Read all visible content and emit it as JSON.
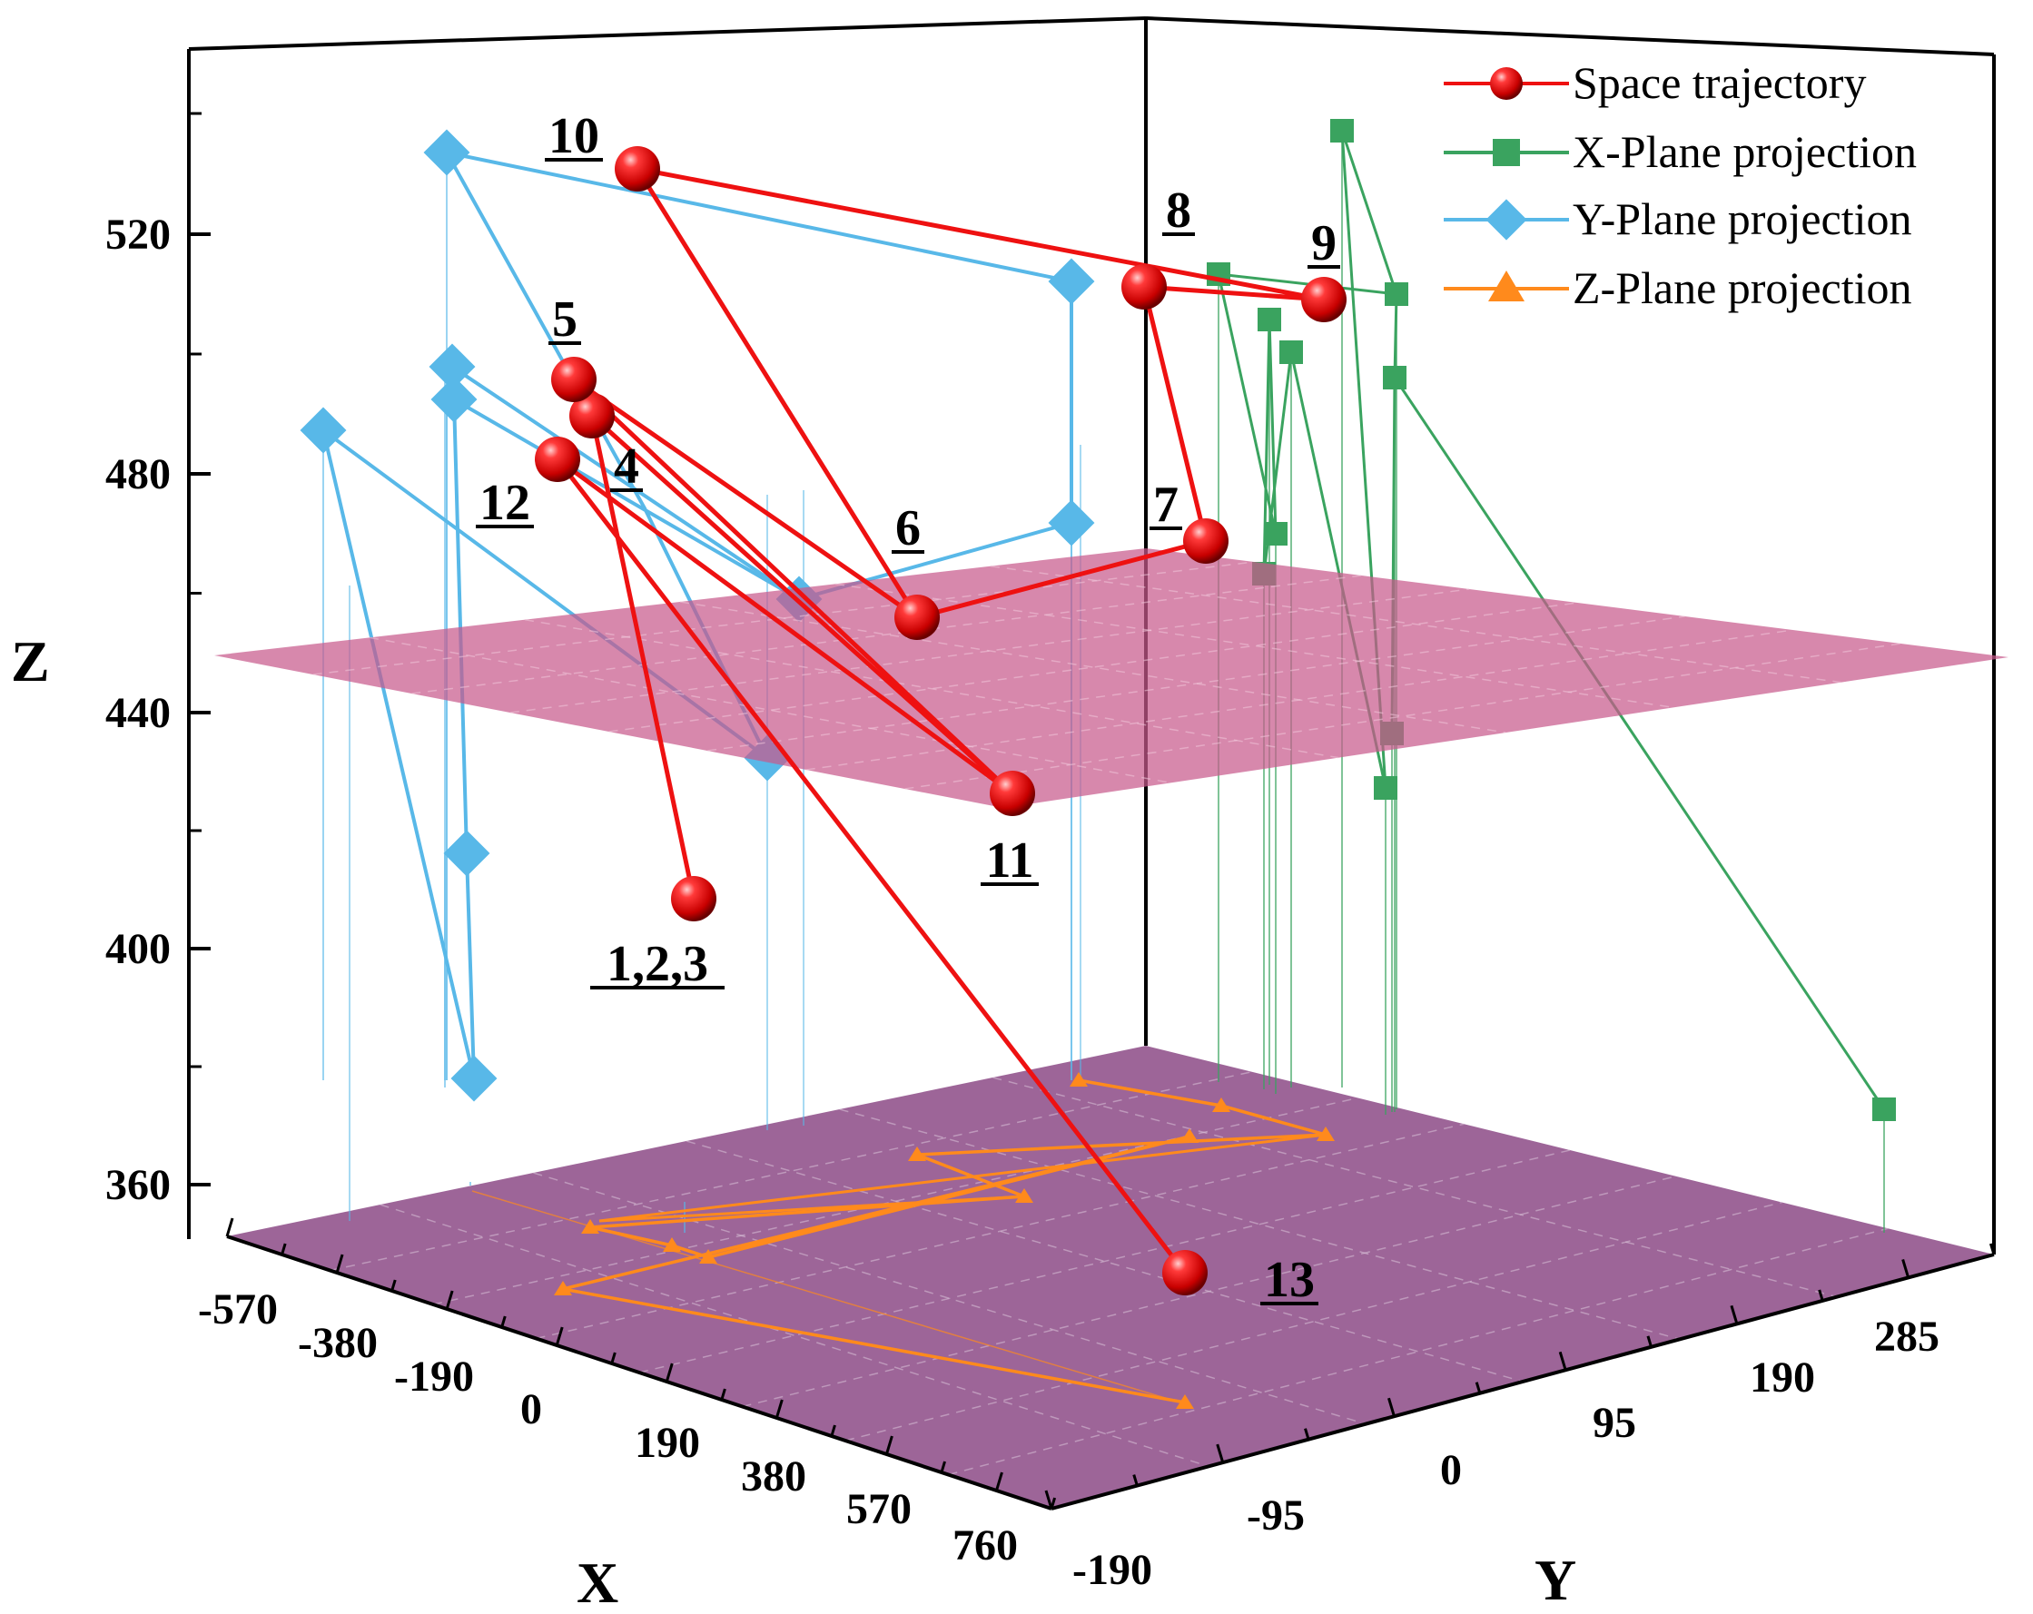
{
  "chart_data": {
    "type": "scatter",
    "title": "",
    "xlabel": "X",
    "ylabel": "Y",
    "zlabel": "Z",
    "x_ticks": [
      "-570",
      "-380",
      "-190",
      "0",
      "190",
      "380",
      "570",
      "760"
    ],
    "y_ticks": [
      "-190",
      "-95",
      "0",
      "95",
      "190",
      "285"
    ],
    "z_ticks": [
      "360",
      "400",
      "440",
      "480",
      "520"
    ],
    "legend": {
      "placement": "top-right",
      "entries": [
        {
          "name": "Space trajectory",
          "color": "#ee1111",
          "marker": "sphere"
        },
        {
          "name": "X-Plane projection",
          "color": "#3aa35f",
          "marker": "square"
        },
        {
          "name": "Y-Plane projection",
          "color": "#58b8e8",
          "marker": "diamond"
        },
        {
          "name": "Z-Plane projection",
          "color": "#ff8a1c",
          "marker": "triangle"
        }
      ]
    },
    "point_labels": [
      "1,2,3",
      "4",
      "5",
      "6",
      "7",
      "8",
      "9",
      "10",
      "11",
      "12",
      "13"
    ],
    "colors": {
      "plane_middle": "#c85a8c",
      "plane_floor": "#8c4a86",
      "trajectory": "#ee1111",
      "x_projection": "#3aa35f",
      "y_projection": "#58b8e8",
      "z_projection": "#ff8a1c"
    }
  }
}
